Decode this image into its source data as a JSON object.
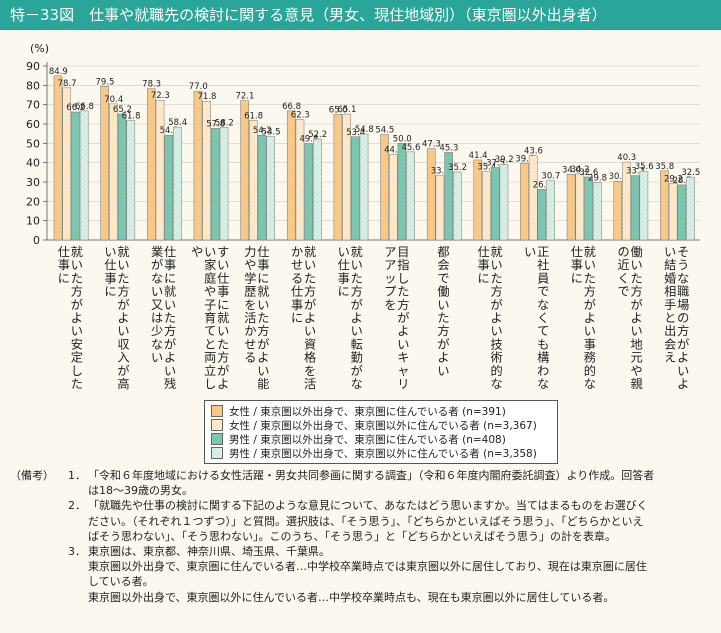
{
  "header": {
    "title": "特－33図　仕事や就職先の検討に関する意見（男女、現住地域別）（東京圏以外出身者）"
  },
  "colors": {
    "header_bg": "#2aa59a",
    "female_tokyo": "#f6c98b",
    "female_other": "#fde3bd",
    "male_tokyo": "#7cc5ae",
    "male_other": "#cde9dd"
  },
  "chart_data": {
    "type": "bar",
    "ylabel": "(%)",
    "ylim": [
      0,
      90
    ],
    "yticks": [
      "0",
      "10",
      "20",
      "30",
      "40",
      "50",
      "60",
      "70",
      "80",
      "90"
    ],
    "categories": [
      "就いた方がよい安定した仕事に",
      "就いた方がよい収入が高い仕事に",
      "仕事に就いた方がよい残業がない又は少ない",
      "すい仕事に就いた方がよい家庭や子育てと両立しや",
      "仕事に就いた方がよい能力や学歴を活かせる",
      "就いた方がよい資格を活かせる仕事に",
      "就いた方がよい転勤がない仕事に",
      "目指した方がよいキャリアアップを",
      "都会で働いた方がよい",
      "就いた方がよい技術的な仕事に",
      "正社員でなくても構わない",
      "就いた方がよい事務的な仕事に",
      "働いた方がよい地元や親の近くで",
      "そうな職場の方がよいよい結婚相手と出会え"
    ],
    "series": [
      {
        "name": "女性 / 東京圏以外出身で、東京圏に住んでいる者 (n=391)",
        "values": [
          84.9,
          79.5,
          78.3,
          77.0,
          72.1,
          66.8,
          65.0,
          54.5,
          47.3,
          41.4,
          39.6,
          34.0,
          30.4,
          35.8
        ]
      },
      {
        "name": "女性 / 東京圏以外出身で、東京圏以外に住んでいる者 (n=3,367)",
        "values": [
          78.7,
          70.4,
          72.3,
          71.8,
          61.8,
          62.3,
          65.1,
          44.2,
          33.3,
          35.4,
          43.6,
          34.2,
          40.3,
          29.2
        ]
      },
      {
        "name": "男性 / 東京圏以外出身で、東京圏に住んでいる者 (n=408)",
        "values": [
          66.2,
          65.2,
          54.2,
          57.8,
          54.2,
          49.8,
          53.4,
          50.0,
          45.3,
          37.5,
          26.2,
          32.6,
          33.3,
          28.5
        ]
      },
      {
        "name": "男性 / 東京圏以外出身で、東京圏以外に住んでいる者 (n=3,358)",
        "values": [
          66.8,
          61.8,
          58.4,
          58.2,
          53.5,
          52.2,
          54.8,
          45.6,
          35.2,
          39.2,
          30.7,
          29.8,
          35.6,
          32.5
        ]
      }
    ]
  },
  "notes": {
    "head": "（備考）",
    "items": [
      {
        "num": "1．",
        "text": "「令和６年度地域における女性活躍・男女共同参画に関する調査」（令和６年度内閣府委託調査）より作成。回答者\nは18～39歳の男女。"
      },
      {
        "num": "2．",
        "text": "「就職先や仕事の検討に関する下記のような意見について、あなたはどう思いますか。当てはまるものをお選びく\nださい。（それぞれ１つずつ）」と質問。選択肢は、「そう思う」、「どちらかといえばそう思う」、「どちらかといえ\nばそう思わない」、「そう思わない」。このうち、「そう思う」と「どちらかといえばそう思う」の計を表章。"
      },
      {
        "num": "3．",
        "text": "東京圏は、東京都、神奈川県、埼玉県、千葉県。\n東京圏以外出身で、東京圏に住んでいる者…中学校卒業時点では東京圏以外に居住しており、現在は東京圏に居住\nしている者。\n東京圏以外出身で、東京圏以外に住んでいる者…中学校卒業時点も、現在も東京圏以外に居住している者。"
      }
    ]
  }
}
